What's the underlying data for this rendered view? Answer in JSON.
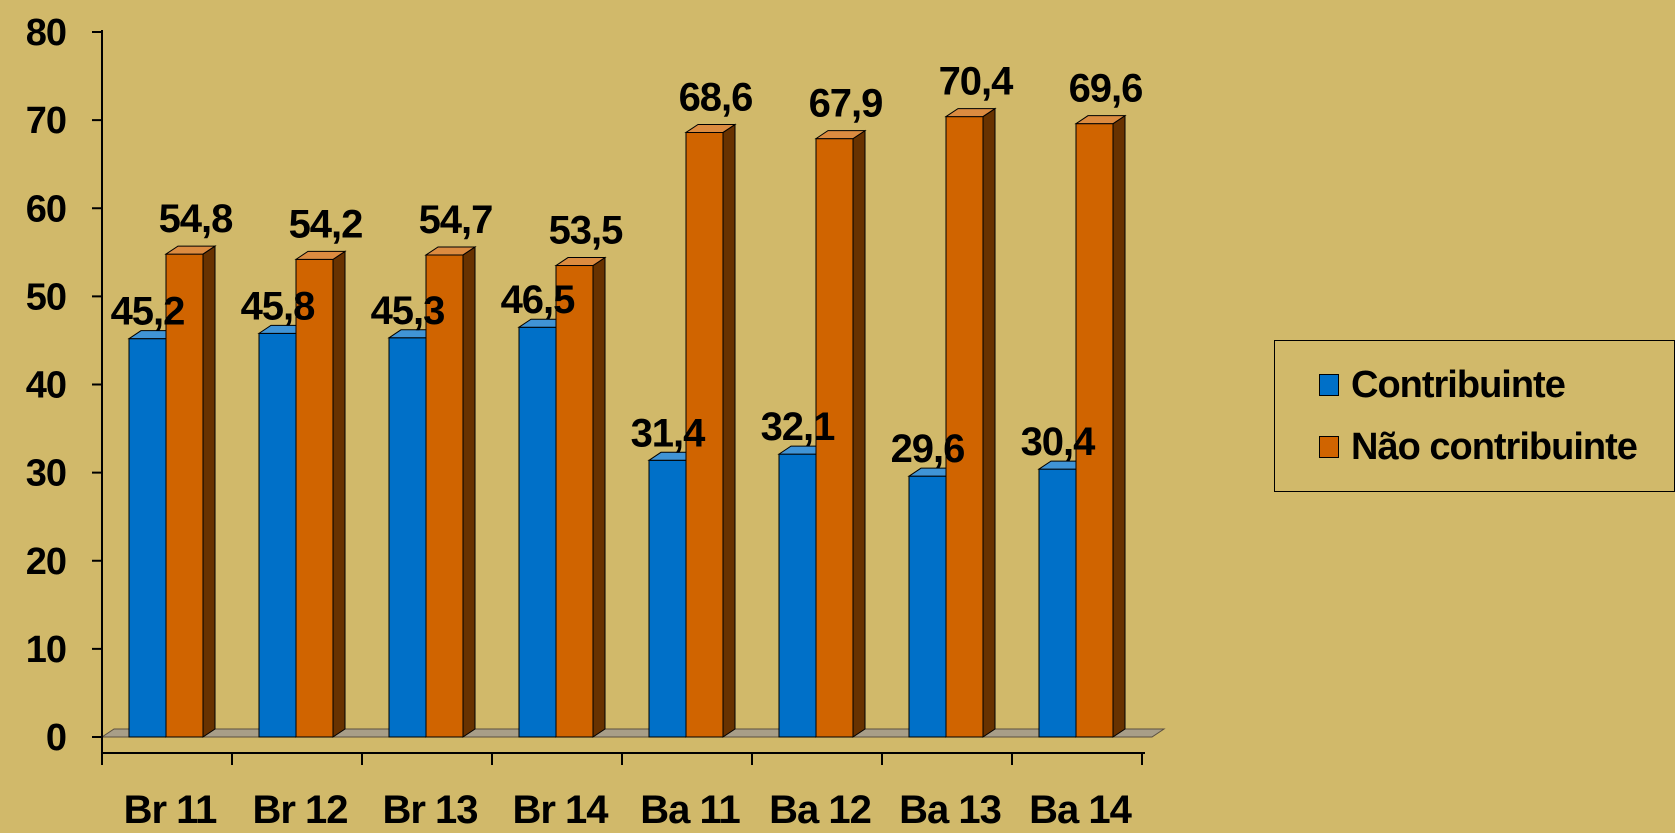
{
  "chart_data": {
    "type": "bar",
    "categories": [
      "Br 11",
      "Br 12",
      "Br 13",
      "Br 14",
      "Ba 11",
      "Ba 12",
      "Ba 13",
      "Ba 14"
    ],
    "series": [
      {
        "name": "Contribuinte",
        "color": "#0070C8",
        "values": [
          45.2,
          45.8,
          45.3,
          46.5,
          31.4,
          32.1,
          29.6,
          30.4
        ],
        "labels": [
          "45,2",
          "45,8",
          "45,3",
          "46,5",
          "31,4",
          "32,1",
          "29,6",
          "30,4"
        ]
      },
      {
        "name": "Não contribuinte",
        "color": "#D06400",
        "values": [
          54.8,
          54.2,
          54.7,
          53.5,
          68.6,
          67.9,
          70.4,
          69.6
        ],
        "labels": [
          "54,8",
          "54,2",
          "54,7",
          "53,5",
          "68,6",
          "67,9",
          "70,4",
          "69,6"
        ]
      }
    ],
    "yticks": [
      "0",
      "10",
      "20",
      "30",
      "40",
      "50",
      "60",
      "70",
      "80"
    ],
    "ylim": [
      0,
      80
    ],
    "legend_position": "right",
    "background_color": "#D1B96A",
    "grid": false
  }
}
